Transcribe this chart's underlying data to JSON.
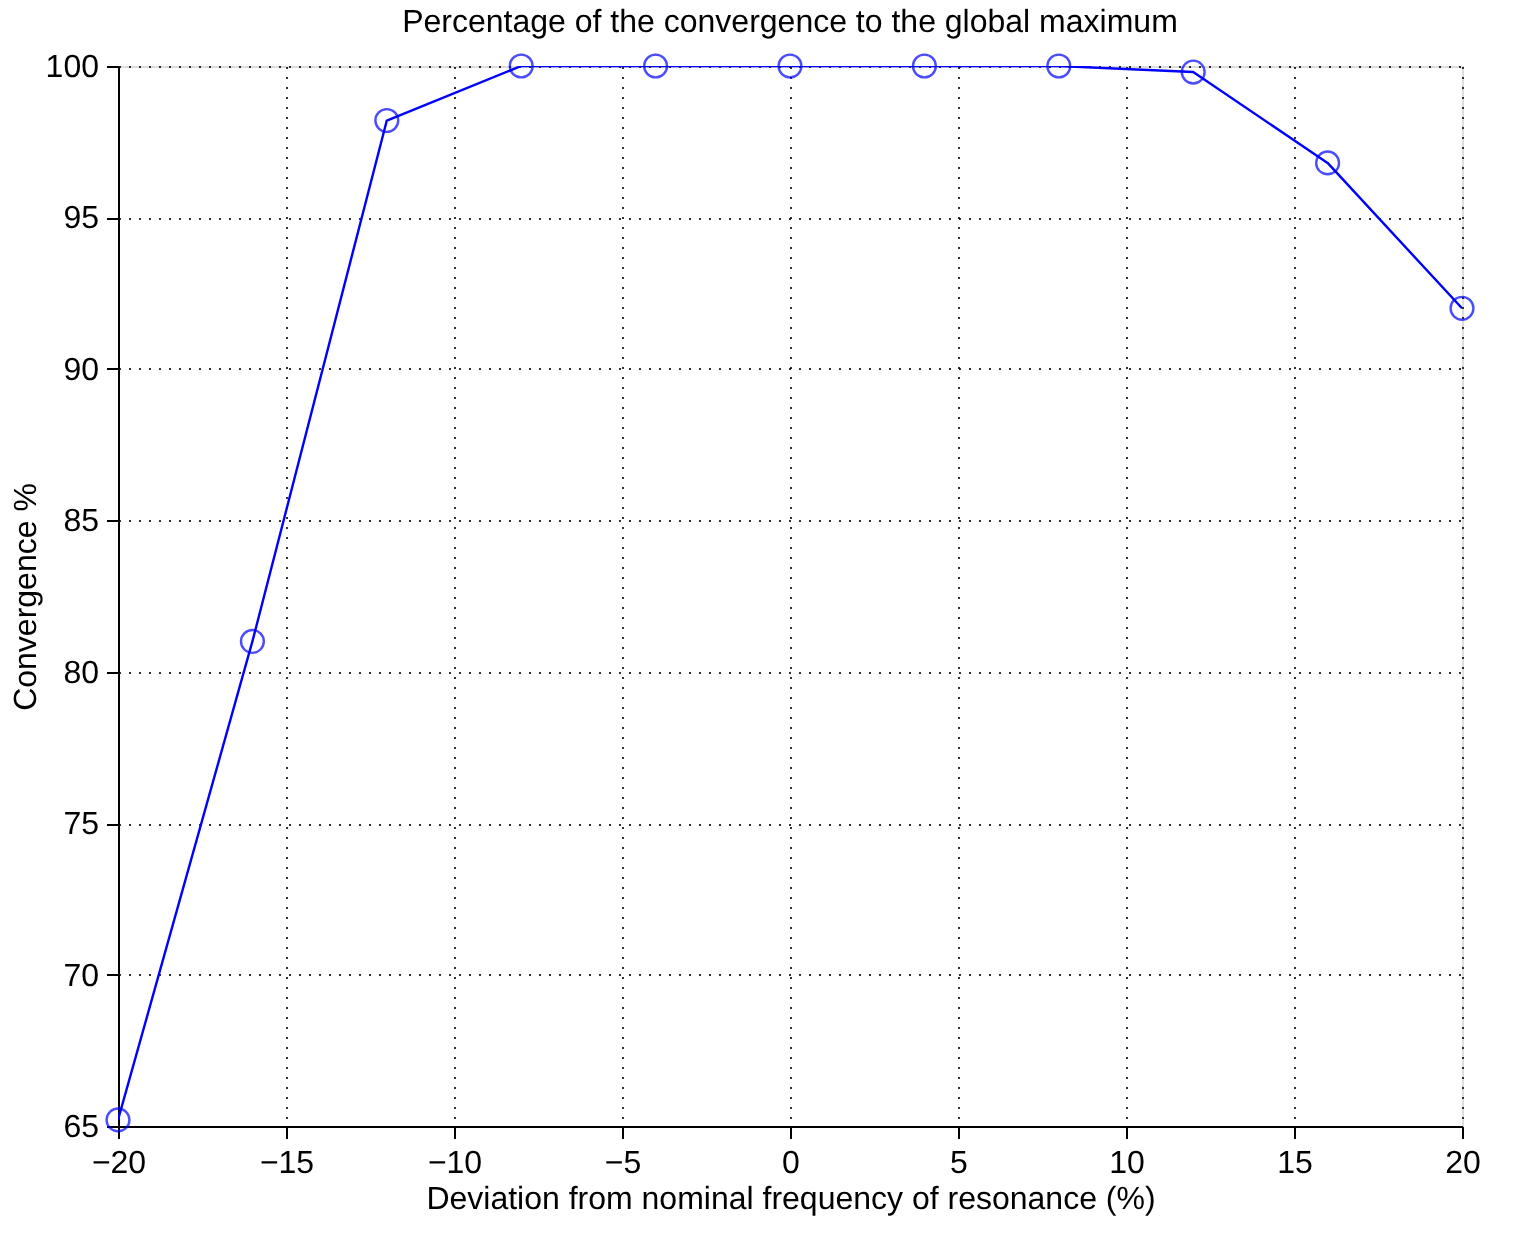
{
  "chart_data": {
    "type": "line",
    "title": "Percentage of the convergence to the global maximum",
    "xlabel": "Deviation from nominal frequency of resonance (%)",
    "ylabel": "Convergence %",
    "x": [
      -20,
      -16,
      -12,
      -8,
      -4,
      0,
      4,
      8,
      12,
      16,
      20
    ],
    "series": [
      {
        "color": "#0000ff",
        "values": [
          65.2,
          81.0,
          98.2,
          100,
          100,
          100,
          100,
          100,
          99.8,
          96.8,
          92.0
        ]
      }
    ],
    "xlim": [
      -20,
      20
    ],
    "xticks": [
      {
        "value": -20,
        "label": "−20"
      },
      {
        "value": -15,
        "label": "−15"
      },
      {
        "value": -10,
        "label": "−10"
      },
      {
        "value": -5,
        "label": "−5"
      },
      0,
      5,
      10,
      15,
      20
    ],
    "ylim": [
      65,
      100
    ],
    "yticks": [
      65,
      70,
      75,
      80,
      85,
      90,
      95,
      100
    ],
    "grid": true,
    "marker": "circle",
    "line_style": "solid"
  }
}
